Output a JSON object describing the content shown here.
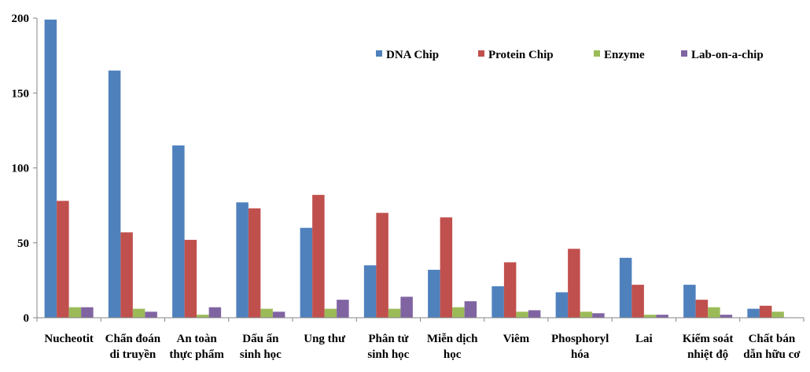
{
  "chart_data": {
    "type": "bar",
    "categories": [
      [
        "Nucheotit"
      ],
      [
        "Chẩn đoán",
        "di truyền"
      ],
      [
        "An toàn",
        "thực phẩm"
      ],
      [
        "Dấu ấn",
        "sinh học"
      ],
      [
        "Ung thư"
      ],
      [
        "Phân tử",
        "sinh học"
      ],
      [
        "Miễn dịch",
        "học"
      ],
      [
        "Viêm"
      ],
      [
        "Phosphoryl",
        "hóa"
      ],
      [
        "Lai"
      ],
      [
        "Kiểm soát",
        "nhiệt độ"
      ],
      [
        "Chất bán",
        "dẫn hữu cơ"
      ]
    ],
    "series": [
      {
        "name": "DNA Chip",
        "color": "#4F81BD",
        "values": [
          199,
          165,
          115,
          77,
          60,
          35,
          32,
          21,
          17,
          40,
          22,
          6
        ]
      },
      {
        "name": "Protein Chip",
        "color": "#C0504D",
        "values": [
          78,
          57,
          52,
          73,
          82,
          70,
          67,
          37,
          46,
          22,
          12,
          8
        ]
      },
      {
        "name": "Enzyme",
        "color": "#9BBB59",
        "values": [
          7,
          6,
          2,
          6,
          6,
          6,
          7,
          4,
          4,
          2,
          7,
          4
        ]
      },
      {
        "name": "Lab-on-a-chip",
        "color": "#8064A2",
        "values": [
          7,
          4,
          7,
          4,
          12,
          14,
          11,
          5,
          3,
          2,
          2,
          0
        ]
      }
    ],
    "yticks": [
      "0",
      "50",
      "100",
      "150",
      "200"
    ],
    "ylim": [
      0,
      200
    ],
    "legend_position": "top-right",
    "title": "",
    "xlabel": "",
    "ylabel": ""
  }
}
